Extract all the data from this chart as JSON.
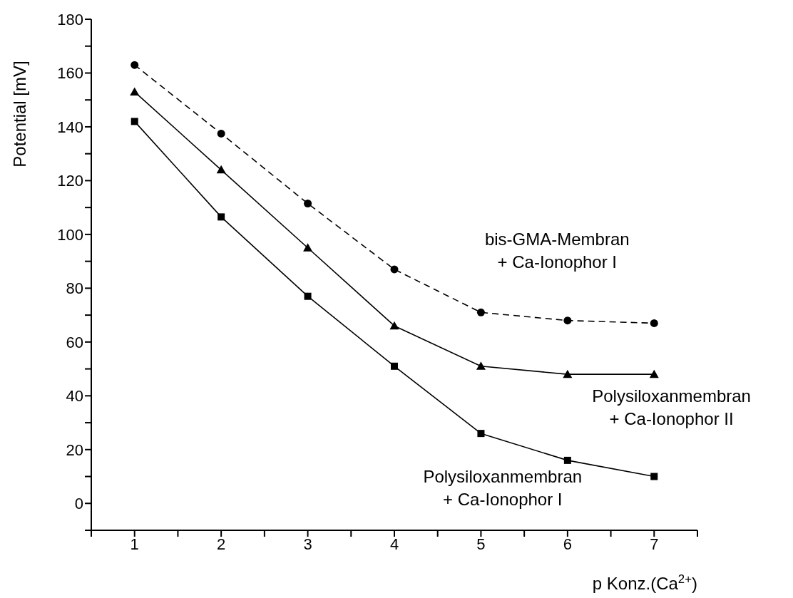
{
  "chart_data": {
    "type": "line",
    "xlabel": "p Konz.(Ca$^{2+}$)",
    "ylabel": "Potential [mV]",
    "x": [
      1,
      2,
      3,
      4,
      5,
      6,
      7
    ],
    "xlim": [
      0.5,
      7.5
    ],
    "xticks": [
      {
        "value": 0.5,
        "label": null
      },
      1,
      {
        "value": 1.5,
        "label": null
      },
      2,
      {
        "value": 2.5,
        "label": null
      },
      3,
      {
        "value": 3.5,
        "label": null
      },
      4,
      {
        "value": 4.5,
        "label": null
      },
      5,
      {
        "value": 5.5,
        "label": null
      },
      6,
      {
        "value": 6.5,
        "label": null
      },
      7,
      {
        "value": 7.5,
        "label": null
      }
    ],
    "ylim": [
      -10,
      180
    ],
    "yticks": [
      {
        "value": -10,
        "label": null
      },
      0,
      {
        "value": 10,
        "label": null
      },
      20,
      {
        "value": 30,
        "label": null
      },
      40,
      {
        "value": 50,
        "label": null
      },
      60,
      {
        "value": 70,
        "label": null
      },
      80,
      {
        "value": 90,
        "label": null
      },
      100,
      {
        "value": 110,
        "label": null
      },
      120,
      {
        "value": 130,
        "label": null
      },
      140,
      {
        "value": 150,
        "label": null
      },
      160,
      {
        "value": 170,
        "label": null
      },
      180
    ],
    "grid": false,
    "legend": false,
    "series": [
      {
        "name": "bis-GMA-Membran\n+ Ca-Ionophor I",
        "color": "#000000",
        "marker": "circle",
        "line_style": "dashed",
        "values": [
          163,
          137.5,
          111.5,
          87,
          71,
          68,
          67
        ]
      },
      {
        "name": "Polysiloxanmembran\n+ Ca-Ionophor II",
        "color": "#000000",
        "marker": "triangle",
        "line_style": "solid",
        "values": [
          153,
          124,
          95,
          66,
          51,
          48,
          48
        ]
      },
      {
        "name": "Polysiloxanmembran\n+ Ca-Ionophor I",
        "color": "#000000",
        "marker": "square",
        "line_style": "solid",
        "values": [
          142,
          106.5,
          77,
          51,
          26,
          16,
          10
        ]
      }
    ]
  }
}
